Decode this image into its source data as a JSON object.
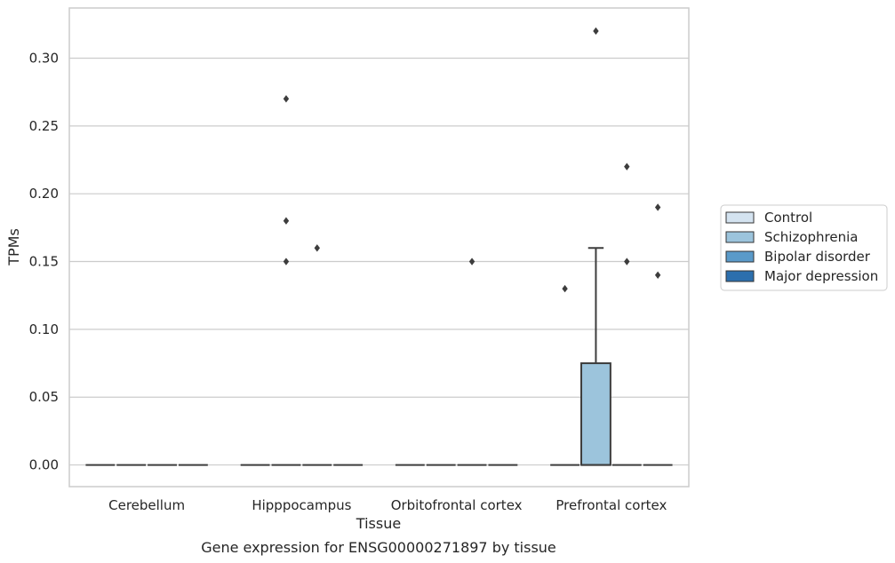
{
  "chart_data": {
    "type": "box",
    "caption": "Gene expression for ENSG00000271897 by tissue",
    "xlabel": "Tissue",
    "ylabel": "TPMs",
    "categories": [
      "Cerebellum",
      "Hipppocampus",
      "Orbitofrontal cortex",
      "Prefrontal cortex"
    ],
    "ylim": [
      -0.016,
      0.337
    ],
    "yticks": [
      0.0,
      0.05,
      0.1,
      0.15,
      0.2,
      0.25,
      0.3
    ],
    "ytick_labels": [
      "0.00",
      "0.05",
      "0.10",
      "0.15",
      "0.20",
      "0.25",
      "0.30"
    ],
    "grid": "horizontal",
    "legend_position": "outside-right",
    "series": [
      {
        "name": "Control",
        "color": "#d4e3f0",
        "boxes": [
          {
            "q1": 0,
            "median": 0,
            "q3": 0,
            "whisker_low": 0,
            "whisker_high": 0,
            "outliers": []
          },
          {
            "q1": 0,
            "median": 0,
            "q3": 0,
            "whisker_low": 0,
            "whisker_high": 0,
            "outliers": []
          },
          {
            "q1": 0,
            "median": 0,
            "q3": 0,
            "whisker_low": 0,
            "whisker_high": 0,
            "outliers": []
          },
          {
            "q1": 0,
            "median": 0,
            "q3": 0,
            "whisker_low": 0,
            "whisker_high": 0,
            "outliers": [
              0.13
            ]
          }
        ]
      },
      {
        "name": "Schizophrenia",
        "color": "#9cc4dc",
        "boxes": [
          {
            "q1": 0,
            "median": 0,
            "q3": 0,
            "whisker_low": 0,
            "whisker_high": 0,
            "outliers": []
          },
          {
            "q1": 0,
            "median": 0,
            "q3": 0,
            "whisker_low": 0,
            "whisker_high": 0,
            "outliers": [
              0.27,
              0.18,
              0.15
            ]
          },
          {
            "q1": 0,
            "median": 0,
            "q3": 0,
            "whisker_low": 0,
            "whisker_high": 0,
            "outliers": []
          },
          {
            "q1": 0,
            "median": 0,
            "q3": 0.075,
            "whisker_low": 0,
            "whisker_high": 0.16,
            "outliers": [
              0.32
            ]
          }
        ]
      },
      {
        "name": "Bipolar disorder",
        "color": "#5a9ac9",
        "boxes": [
          {
            "q1": 0,
            "median": 0,
            "q3": 0,
            "whisker_low": 0,
            "whisker_high": 0,
            "outliers": []
          },
          {
            "q1": 0,
            "median": 0,
            "q3": 0,
            "whisker_low": 0,
            "whisker_high": 0,
            "outliers": [
              0.16
            ]
          },
          {
            "q1": 0,
            "median": 0,
            "q3": 0,
            "whisker_low": 0,
            "whisker_high": 0,
            "outliers": [
              0.15
            ]
          },
          {
            "q1": 0,
            "median": 0,
            "q3": 0,
            "whisker_low": 0,
            "whisker_high": 0,
            "outliers": [
              0.22,
              0.15
            ]
          }
        ]
      },
      {
        "name": "Major depression",
        "color": "#2c6fad",
        "boxes": [
          {
            "q1": 0,
            "median": 0,
            "q3": 0,
            "whisker_low": 0,
            "whisker_high": 0,
            "outliers": []
          },
          {
            "q1": 0,
            "median": 0,
            "q3": 0,
            "whisker_low": 0,
            "whisker_high": 0,
            "outliers": []
          },
          {
            "q1": 0,
            "median": 0,
            "q3": 0,
            "whisker_low": 0,
            "whisker_high": 0,
            "outliers": []
          },
          {
            "q1": 0,
            "median": 0,
            "q3": 0,
            "whisker_low": 0,
            "whisker_high": 0,
            "outliers": [
              0.19,
              0.14
            ]
          }
        ]
      }
    ]
  }
}
